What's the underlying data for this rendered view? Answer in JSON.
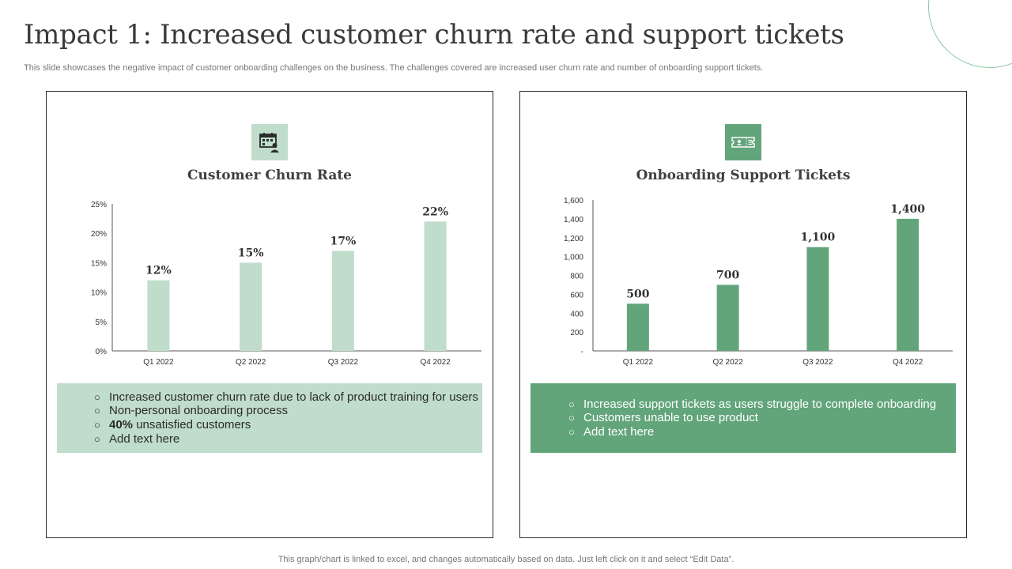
{
  "page": {
    "title": "Impact 1: Increased customer churn rate and support tickets",
    "subtitle": "This slide showcases the negative impact of customer onboarding challenges on the business. The challenges covered are increased user churn rate and number of onboarding support tickets.",
    "footer": "This graph/chart is linked to excel,  and changes automatically based on data. Just left click on it and select “Edit Data”."
  },
  "panels": [
    {
      "icon": "calendar-dollar-icon",
      "title": "Customer Churn Rate",
      "bullets": [
        {
          "strong": "",
          "text": "Increased customer churn rate due to lack of product training for users"
        },
        {
          "strong": "",
          "text": "Non-personal onboarding process"
        },
        {
          "strong": "40%",
          "text": " unsatisfied customers"
        },
        {
          "strong": "",
          "text": "Add text here"
        }
      ]
    },
    {
      "icon": "ticket-icon",
      "title": "Onboarding Support Tickets",
      "bullets": [
        {
          "strong": "",
          "text": "Increased support tickets as users struggle to complete onboarding"
        },
        {
          "strong": "",
          "text": "Customers unable to use product"
        },
        {
          "strong": "",
          "text": "Add text here"
        }
      ]
    }
  ],
  "colors": {
    "light_green": "#c0dcca",
    "dark_green": "#62a57b"
  },
  "chart_data": [
    {
      "type": "bar",
      "title": "Customer Churn Rate",
      "categories": [
        "Q1 2022",
        "Q2 2022",
        "Q3 2022",
        "Q4 2022"
      ],
      "values": [
        12,
        15,
        17,
        22
      ],
      "value_labels": [
        "12%",
        "15%",
        "17%",
        "22%"
      ],
      "yticks": [
        "0%",
        "5%",
        "10%",
        "15%",
        "20%",
        "25%"
      ],
      "ylim": [
        0,
        25
      ],
      "bar_color": "#c0dcca",
      "grid": false,
      "legend": "none"
    },
    {
      "type": "bar",
      "title": "Onboarding Support Tickets",
      "categories": [
        "Q1 2022",
        "Q2 2022",
        "Q3 2022",
        "Q4 2022"
      ],
      "values": [
        500,
        700,
        1100,
        1400
      ],
      "value_labels": [
        "500",
        "700",
        "1,100",
        "1,400"
      ],
      "yticks": [
        "-",
        "200",
        "400",
        "600",
        "800",
        "1,000",
        "1,200",
        "1,400",
        "1,600"
      ],
      "ylim": [
        0,
        1600
      ],
      "bar_color": "#62a57b",
      "grid": false,
      "legend": "none"
    }
  ]
}
